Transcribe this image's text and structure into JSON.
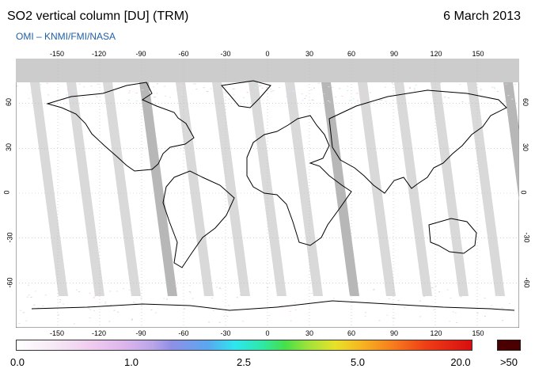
{
  "header": {
    "title": "SO2 vertical column [DU] (TRM)",
    "date": "6 March 2013",
    "credit": "OMI  –  KNMI/FMI/NASA"
  },
  "lon_ticks": [
    "-150",
    "-120",
    "-90",
    "-60",
    "-30",
    "0",
    "30",
    "60",
    "90",
    "120",
    "150"
  ],
  "lon_values": [
    -150,
    -120,
    -90,
    -60,
    -30,
    0,
    30,
    60,
    90,
    120,
    150
  ],
  "lat_ticks": [
    "60",
    "30",
    "0",
    "-30",
    "-60"
  ],
  "lat_values": [
    60,
    30,
    0,
    -30,
    -60
  ],
  "colorbar": {
    "labels": [
      "0.0",
      "1.0",
      "2.5",
      "5.0",
      "20.0",
      ">50"
    ],
    "values": [
      0.0,
      1.0,
      2.5,
      5.0,
      20.0,
      50
    ]
  },
  "map": {
    "projection": "equirectangular",
    "lon_range": [
      -180,
      180
    ],
    "lat_range": [
      -90,
      90
    ],
    "colors": {
      "background": "#ffffff",
      "no_data": "#cccccc",
      "swath_gap": "#d2d2d2",
      "swath_gap_dark": "#aaaaaa",
      "coastline": "#000000",
      "gridline": "#bbbbbb",
      "max_color": "#4a0000"
    }
  }
}
